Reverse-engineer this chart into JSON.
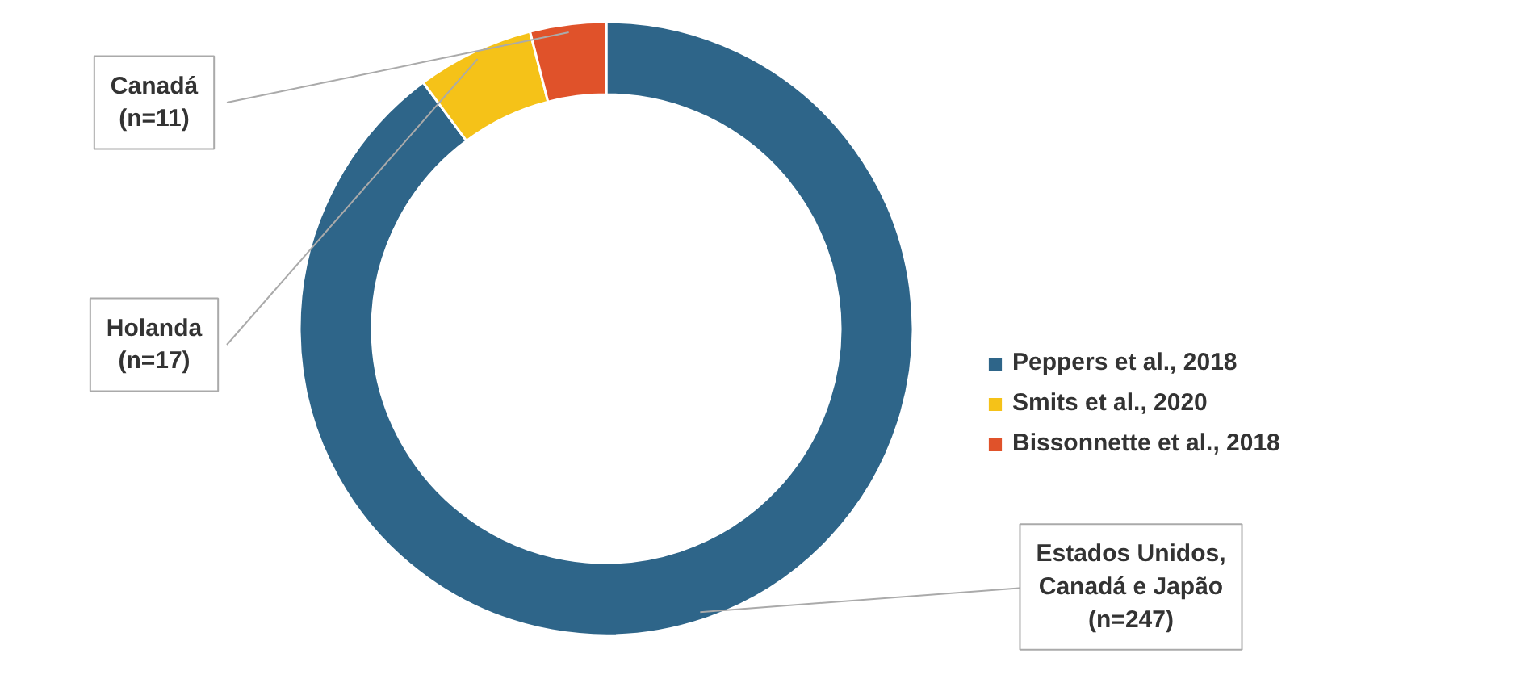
{
  "chart_data": {
    "type": "donut",
    "categories": [
      "Peppers et al., 2018",
      "Smits et al., 2020",
      "Bissonnette et al., 2018"
    ],
    "values": [
      247,
      17,
      11
    ],
    "colors": [
      "#2e6589",
      "#f5c218",
      "#e0522a"
    ],
    "value_labels": [
      "Estados Unidos,\nCanadá e Japão\n(n=247)",
      "Holanda\n(n=17)",
      "Canadá\n(n=11)"
    ],
    "legend": "right"
  }
}
